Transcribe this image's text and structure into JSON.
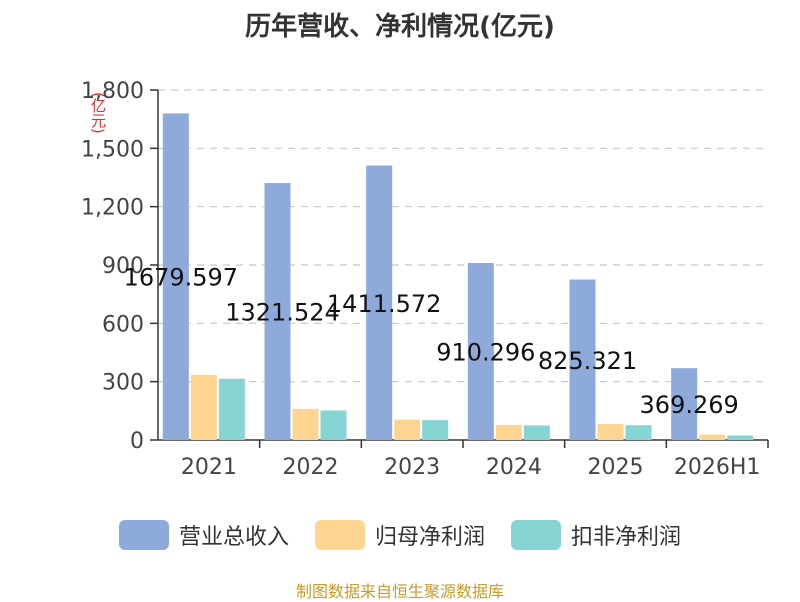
{
  "title": "历年营收、净利情况(亿元)",
  "source": "制图数据来自恒生聚源数据库",
  "chart_data": {
    "type": "bar",
    "title": "历年营收、净利情况(亿元)",
    "ylabel": "(亿元)",
    "xlabel": "",
    "categories": [
      "2021",
      "2022",
      "2023",
      "2024",
      "2025",
      "2026H1"
    ],
    "ylim": [
      0,
      1800
    ],
    "yticks": [
      0,
      300,
      600,
      900,
      1200,
      1500,
      1800
    ],
    "ytick_labels": [
      "0",
      "300",
      "600",
      "900",
      "1,200",
      "1,500",
      "1,800"
    ],
    "grid": true,
    "legend_position": "bottom",
    "series": [
      {
        "name": "营业总收入",
        "color": "#8eaadb",
        "values": [
          1679.597,
          1321.524,
          1411.572,
          910.296,
          825.321,
          369.269
        ],
        "data_labels": [
          "1679.597",
          "1321.524",
          "1411.572",
          "910.296",
          "825.321",
          "369.269"
        ]
      },
      {
        "name": "归母净利润",
        "color": "#ffd591",
        "values": [
          335,
          160,
          105,
          78,
          82,
          28
        ]
      },
      {
        "name": "扣非净利润",
        "color": "#86d4d4",
        "values": [
          315,
          152,
          102,
          75,
          76,
          23
        ]
      }
    ]
  }
}
